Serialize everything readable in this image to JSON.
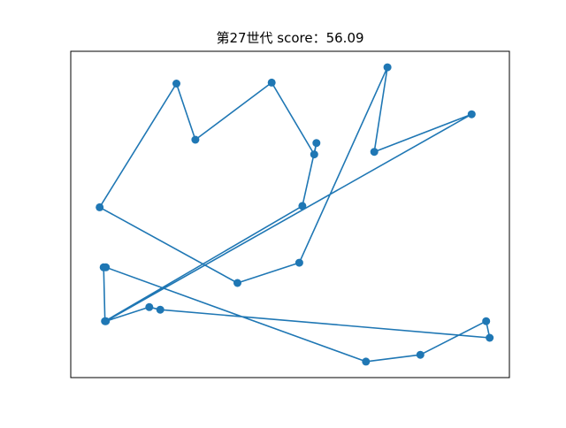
{
  "chart_data": {
    "type": "line",
    "title": "第27世代 score：56.09",
    "xlabel": "",
    "ylabel": "",
    "xlim": [
      0,
      100
    ],
    "ylim": [
      0,
      100
    ],
    "grid": false,
    "axis_ticks_visible": false,
    "line_color": "#1f77b4",
    "marker_color": "#1f77b4",
    "series": [
      {
        "x": [
          7.5,
          7.8,
          52.8,
          56.0,
          55.5,
          45.8,
          28.4,
          24.1,
          6.6,
          38.0,
          52.1,
          72.2,
          69.2,
          91.4,
          8.0,
          17.9,
          20.4,
          95.5,
          94.7,
          79.7,
          67.3,
          8.0
        ],
        "y": [
          33.8,
          17.3,
          52.6,
          71.9,
          68.4,
          90.4,
          72.9,
          90.1,
          52.2,
          29.0,
          35.2,
          95.1,
          69.2,
          80.7,
          17.3,
          21.6,
          20.8,
          12.2,
          17.3,
          7.0,
          4.9,
          33.8
        ]
      }
    ]
  }
}
